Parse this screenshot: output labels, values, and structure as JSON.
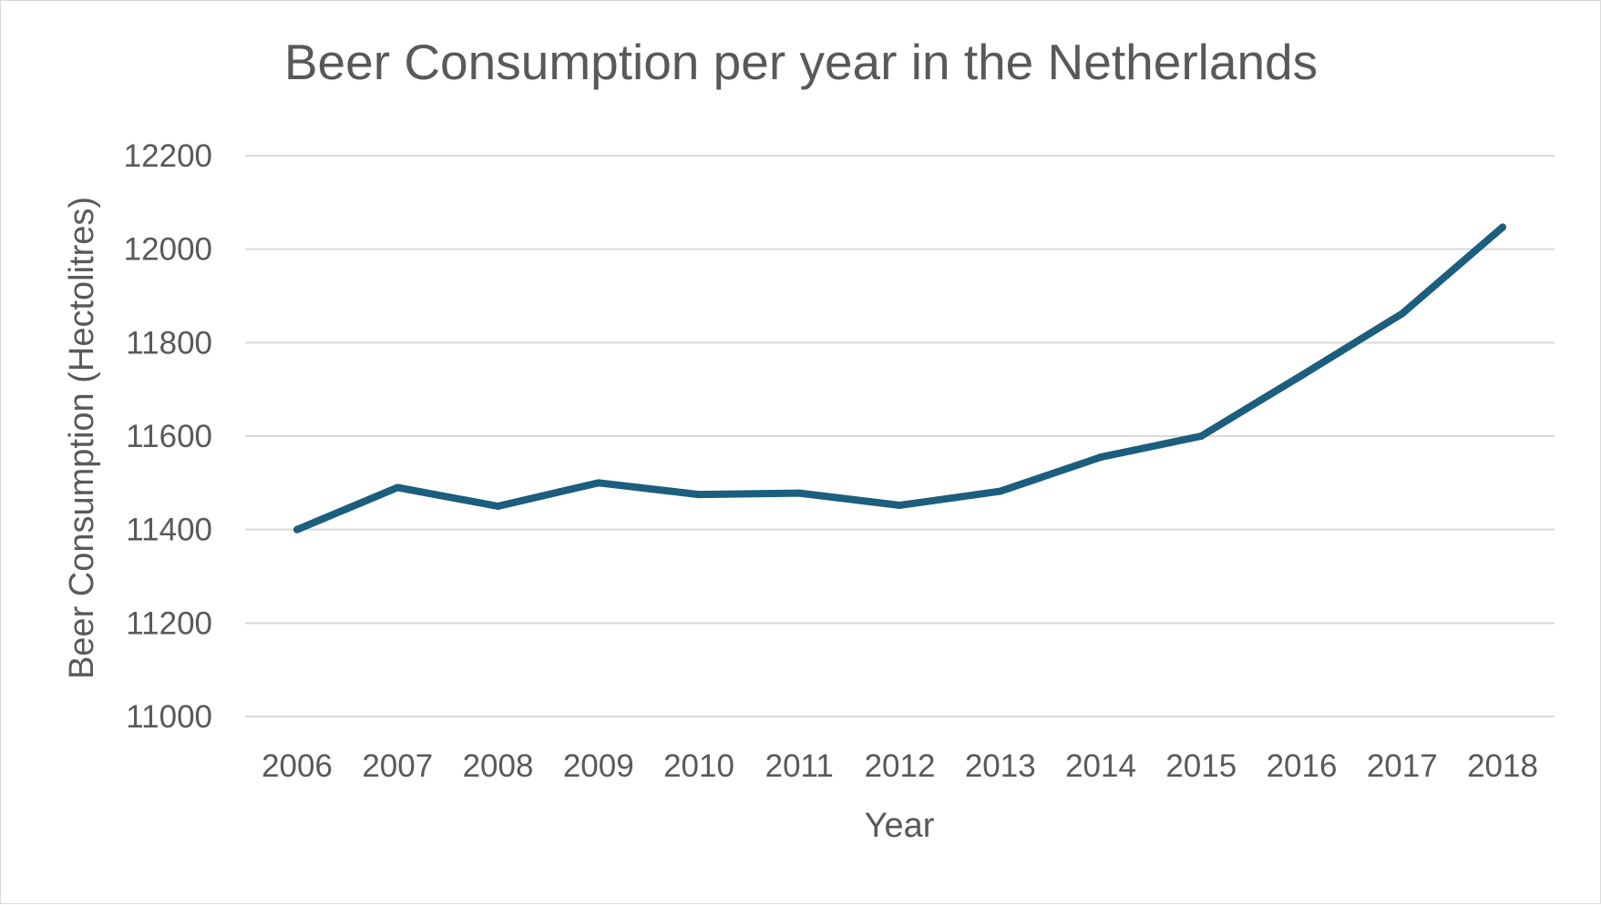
{
  "chart_data": {
    "type": "line",
    "title": "Beer Consumption per year in the Netherlands",
    "xlabel": "Year",
    "ylabel": "Beer Consumption (Hectolitres)",
    "categories": [
      "2006",
      "2007",
      "2008",
      "2009",
      "2010",
      "2011",
      "2012",
      "2013",
      "2014",
      "2015",
      "2016",
      "2017",
      "2018"
    ],
    "series": [
      {
        "values": [
          11400,
          11490,
          11450,
          11500,
          11475,
          11478,
          11452,
          11482,
          11555,
          11600,
          11730,
          11862,
          12047
        ],
        "color": "#1b5e7e"
      }
    ],
    "yticks": [
      "11000",
      "11200",
      "11400",
      "11600",
      "11800",
      "12000",
      "12200"
    ],
    "ylim": [
      11000,
      12200
    ],
    "grid": true,
    "legend": "none"
  }
}
